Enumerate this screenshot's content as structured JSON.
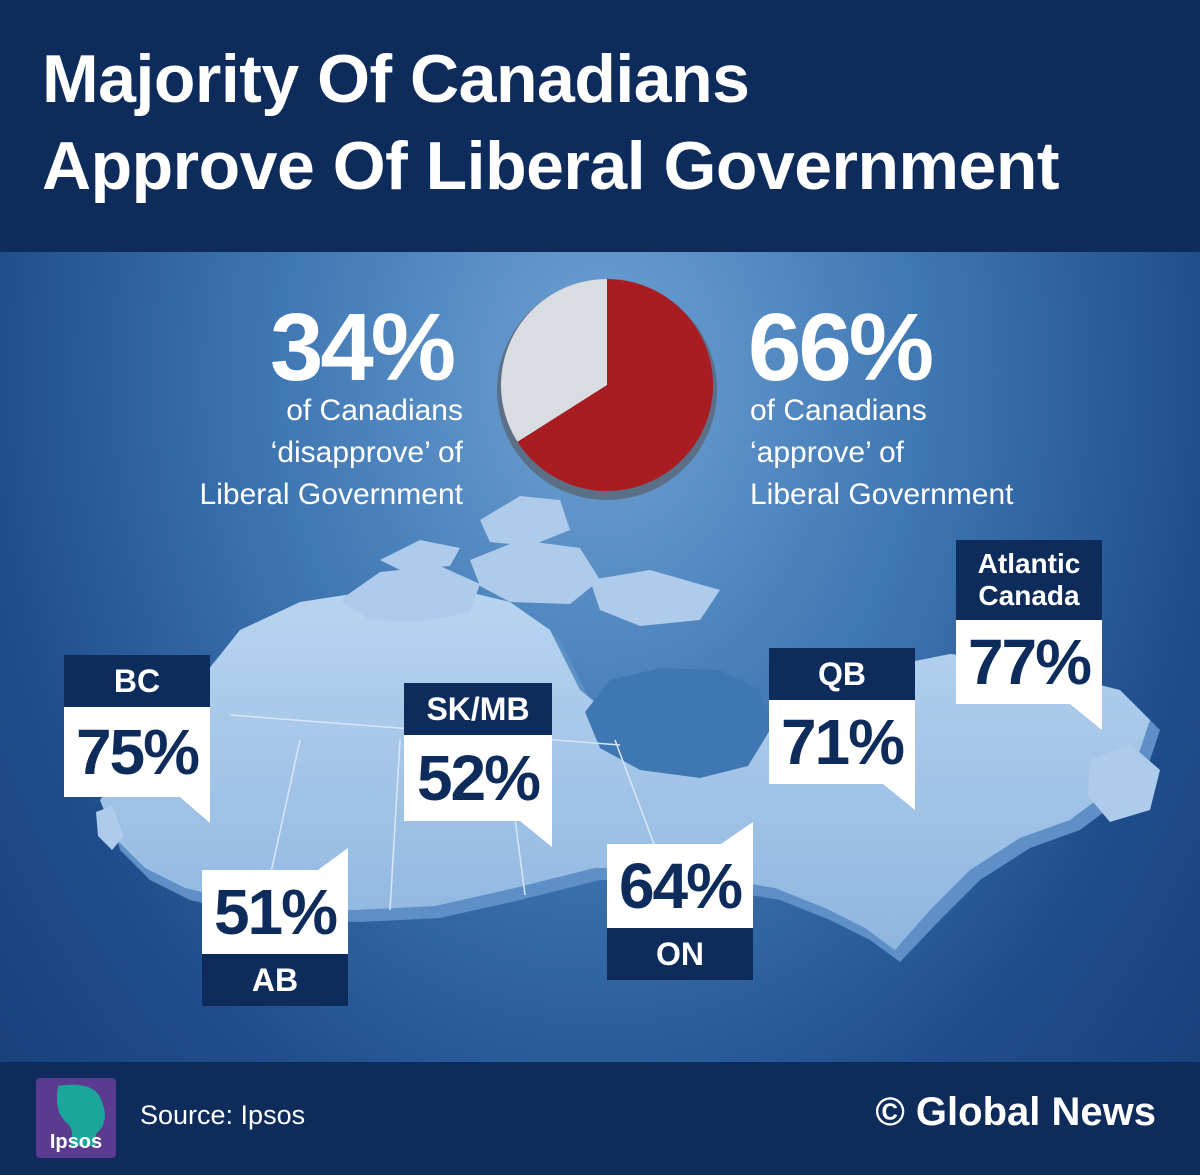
{
  "title": {
    "line1": "Majority Of Canadians",
    "line2": "Approve Of Liberal Government"
  },
  "national": {
    "disapprove": {
      "value": "34%",
      "line1": "of Canadians",
      "line2": "‘disapprove’ of",
      "line3": "Liberal Government"
    },
    "approve": {
      "value": "66%",
      "line1": "of Canadians",
      "line2": "‘approve’ of",
      "line3": "Liberal Government"
    }
  },
  "chart_data": [
    {
      "type": "pie",
      "slices": [
        {
          "label": "‘approve’ of Liberal Government",
          "value": 66,
          "color": "#a81c22"
        },
        {
          "label": "‘disapprove’ of Liberal Government",
          "value": 34,
          "color": "#d9dde2"
        }
      ]
    },
    {
      "type": "bar",
      "categories": [
        "BC",
        "AB",
        "SK/MB",
        "ON",
        "QB",
        "Atlantic Canada"
      ],
      "values": [
        75,
        51,
        52,
        64,
        71,
        77
      ]
    }
  ],
  "regions": {
    "bc": {
      "label": "BC",
      "value": "75%"
    },
    "ab": {
      "label": "AB",
      "value": "51%"
    },
    "skmb": {
      "label": "SK/MB",
      "value": "52%"
    },
    "on": {
      "label": "ON",
      "value": "64%"
    },
    "qb": {
      "label": "QB",
      "value": "71%"
    },
    "atlantic": {
      "label_line1": "Atlantic",
      "label_line2": "Canada",
      "value": "77%"
    }
  },
  "footer": {
    "logo_text": "Ipsos",
    "source": "Source: Ipsos",
    "brand": "© Global News"
  },
  "colors": {
    "navy": "#0d2b5b",
    "approve_red": "#a81c22",
    "disapprove_grey": "#d9dde2",
    "map_fill": "#9cc0e6",
    "logo_teal": "#1aa79a",
    "logo_purple": "#5a3b8f"
  },
  "icons": {
    "logo": "ipsos-logo-icon"
  }
}
